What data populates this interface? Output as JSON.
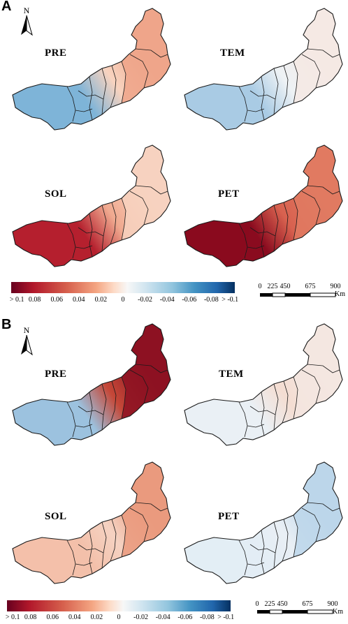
{
  "panels": [
    {
      "letter": "A",
      "north_label": "N",
      "maps": [
        {
          "label": "PRE",
          "fill_west": "#7eb4d8",
          "fill_mid": "#f8d3bf",
          "fill_east": "#eea58a"
        },
        {
          "label": "TEM",
          "fill_west": "#a9cbe4",
          "fill_mid": "#eef2f5",
          "fill_east": "#f4e9e4"
        },
        {
          "label": "SOL",
          "fill_west": "#b5202e",
          "fill_mid": "#f0a98f",
          "fill_east": "#f7d2bf"
        },
        {
          "label": "PET",
          "fill_west": "#8a0b1f",
          "fill_mid": "#d8614f",
          "fill_east": "#e07a62"
        }
      ],
      "colorbar_ticks": [
        "> 0.1",
        "0.08",
        "0.06",
        "0.04",
        "0.02",
        "0",
        "-0.02",
        "-0.04",
        "-0.06",
        "-0.08",
        "> -0.1"
      ],
      "scale_labels": [
        "0",
        "225",
        "450",
        "675",
        "900"
      ],
      "scale_unit": "Km"
    },
    {
      "letter": "B",
      "north_label": "N",
      "maps": [
        {
          "label": "PRE",
          "fill_west": "#9cc2df",
          "fill_mid": "#c54838",
          "fill_east": "#8d1222"
        },
        {
          "label": "TEM",
          "fill_west": "#eaf0f5",
          "fill_mid": "#f4ddd2",
          "fill_east": "#f3e6e1"
        },
        {
          "label": "SOL",
          "fill_west": "#f3c0aa",
          "fill_mid": "#f5d2c2",
          "fill_east": "#ea9a7e"
        },
        {
          "label": "PET",
          "fill_west": "#e3edf5",
          "fill_mid": "#e9eff5",
          "fill_east": "#bcd6ea"
        }
      ],
      "colorbar_ticks": [
        "> 0.1",
        "0.08",
        "0.06",
        "0.04",
        "0.02",
        "0",
        "-0.02",
        "-0.04",
        "-0.06",
        "-0.08",
        "> -0.1"
      ],
      "scale_labels": [
        "0",
        "225",
        "450",
        "675",
        "900"
      ],
      "scale_unit": "Km"
    }
  ],
  "colors": {
    "red_dark": "#67001f",
    "red": "#b2182b",
    "red_mid": "#d6604d",
    "red_light": "#f4a582",
    "red_pale": "#fddbc7",
    "neutral": "#f7f7f7",
    "blue_pale": "#d1e5f0",
    "blue_light": "#92c5de",
    "blue_mid": "#4393c3",
    "blue": "#2166ac",
    "blue_dark": "#053061",
    "outline": "#1a1a1a"
  }
}
